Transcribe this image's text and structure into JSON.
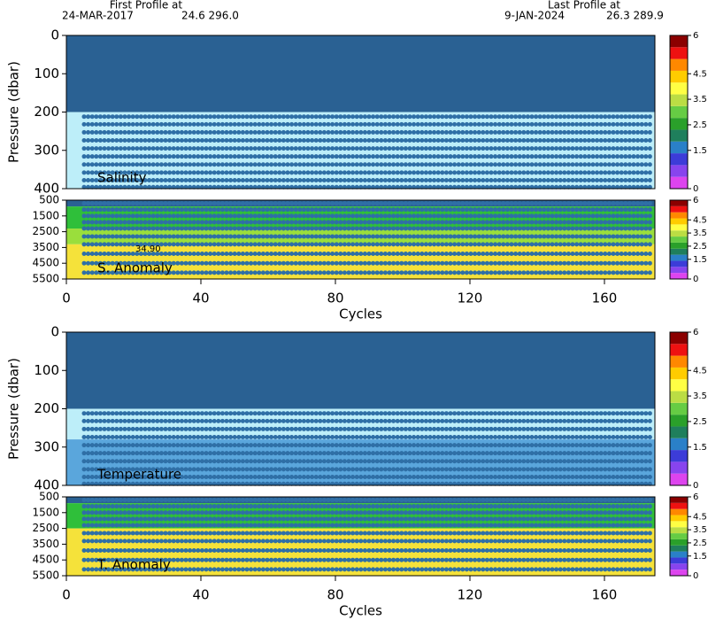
{
  "header": {
    "first_label": "First Profile at",
    "first_date": "24-MAR-2017",
    "first_pos": "24.6 296.0",
    "last_label": "Last Profile at",
    "last_date": "9-JAN-2024",
    "last_pos": "26.3 289.9"
  },
  "chart_data": [
    {
      "type": "section",
      "label": "Salinity",
      "y_label": "Pressure (dbar)",
      "xlim": [
        0,
        175
      ],
      "ylim": [
        0,
        400
      ],
      "yticks": [
        0,
        100,
        200,
        300,
        400
      ],
      "bands": [
        {
          "from": 0,
          "to": 200,
          "color": "#2a6193"
        },
        {
          "from": 200,
          "to": 400,
          "color": "#bdeef9"
        }
      ],
      "dot_rows": [
        212,
        232,
        253,
        274,
        295,
        316,
        337,
        358,
        378,
        396
      ],
      "dot_color": "#2f6fa6",
      "clim": [
        0,
        6
      ],
      "cticks": [
        0,
        1.5,
        2.5,
        3.5,
        4.5,
        6
      ]
    },
    {
      "type": "section",
      "label": "S. Anomaly",
      "x_label": "Cycles",
      "xlim": [
        0,
        175
      ],
      "ylim": [
        500,
        5500
      ],
      "yticks": [
        500,
        1500,
        2500,
        3500,
        4500,
        5500
      ],
      "xticks": [
        0,
        40,
        80,
        120,
        160
      ],
      "bands": [
        {
          "from": 500,
          "to": 900,
          "color": "#2a6193"
        },
        {
          "from": 900,
          "to": 2300,
          "color": "#2fbf3a"
        },
        {
          "from": 2300,
          "to": 3300,
          "color": "#9ade3c"
        },
        {
          "from": 3300,
          "to": 5500,
          "color": "#f5e23a"
        }
      ],
      "dot_rows": [
        700,
        1100,
        1500,
        1900,
        2300,
        2800,
        3300,
        3900,
        4500,
        5100
      ],
      "dot_color": "#2f6fa6",
      "annotation": "34.90",
      "clim": [
        0,
        6
      ],
      "cticks": [
        0,
        1.5,
        2.5,
        3.5,
        4.5,
        6
      ]
    },
    {
      "type": "section",
      "label": "Temperature",
      "y_label": "Pressure (dbar)",
      "xlim": [
        0,
        175
      ],
      "ylim": [
        0,
        400
      ],
      "yticks": [
        0,
        100,
        200,
        300,
        400
      ],
      "bands": [
        {
          "from": 0,
          "to": 200,
          "color": "#2a6193"
        },
        {
          "from": 200,
          "to": 280,
          "color": "#bdeef9"
        },
        {
          "from": 280,
          "to": 400,
          "color": "#5aa6dc"
        }
      ],
      "dot_rows": [
        212,
        232,
        253,
        274,
        295,
        316,
        337,
        358,
        378,
        396
      ],
      "dot_color": "#2f6fa6",
      "clim": [
        0,
        6
      ],
      "cticks": [
        0,
        1.5,
        2.5,
        3.5,
        4.5,
        6
      ]
    },
    {
      "type": "section",
      "label": "T. Anomaly",
      "x_label": "Cycles",
      "xlim": [
        0,
        175
      ],
      "ylim": [
        500,
        5500
      ],
      "yticks": [
        500,
        1500,
        2500,
        3500,
        4500,
        5500
      ],
      "xticks": [
        0,
        40,
        80,
        120,
        160
      ],
      "bands": [
        {
          "from": 500,
          "to": 900,
          "color": "#2a6193"
        },
        {
          "from": 900,
          "to": 2500,
          "color": "#2fbf3a"
        },
        {
          "from": 2500,
          "to": 5500,
          "color": "#f5e23a"
        }
      ],
      "dot_rows": [
        700,
        1100,
        1500,
        1900,
        2300,
        2800,
        3300,
        3900,
        4500,
        5100
      ],
      "dot_color": "#2f6fa6",
      "clim": [
        0,
        6
      ],
      "cticks": [
        0,
        1.5,
        2.5,
        3.5,
        4.5,
        6
      ]
    }
  ],
  "colorbar_colors": [
    "#dd44ee",
    "#8844ee",
    "#3c3cd8",
    "#2a80c8",
    "#1f7f5c",
    "#2aa02a",
    "#66cc44",
    "#bbdd44",
    "#ffff44",
    "#ffcc00",
    "#ff8800",
    "#ee1111",
    "#8b0000"
  ]
}
